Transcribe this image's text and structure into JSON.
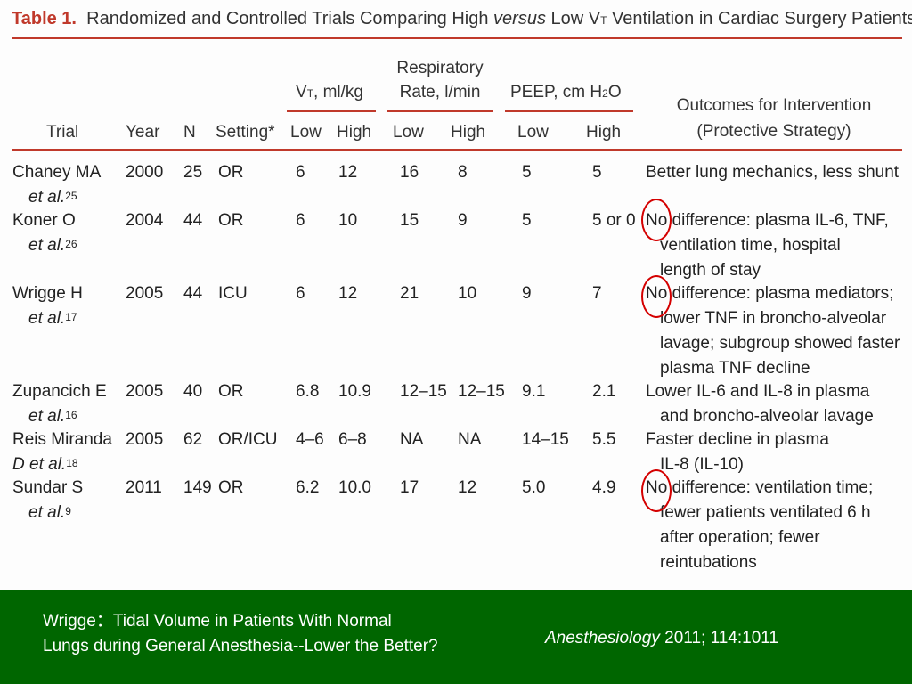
{
  "table": {
    "label": "Table 1.",
    "title_a": "Randomized and Controlled Trials Comparing High ",
    "title_versus": "versus",
    "title_b": " Low V",
    "title_sub": "T",
    "title_c": " Ventilation in Cardiac Surgery Patients",
    "groups": {
      "vt": "ml/kg",
      "vt_prefix": "V",
      "vt_sub": "T",
      "rr_line1": "Respiratory",
      "rr_line2": "Rate, l/min",
      "peep_a": "PEEP, cm H",
      "peep_sub": "2",
      "peep_b": "O"
    },
    "columns": {
      "trial": "Trial",
      "year": "Year",
      "n": "N",
      "setting": "Setting*",
      "low": "Low",
      "high": "High",
      "outcomes_line1": "Outcomes for Intervention",
      "outcomes_line2": "(Protective Strategy)"
    },
    "rows": [
      {
        "trial1": "Chaney MA",
        "trial2": "et al.",
        "ref": "25",
        "year": "2000",
        "n": "25",
        "setting": "OR",
        "vt_low": "6",
        "vt_high": "12",
        "rr_low": "16",
        "rr_high": "8",
        "peep_low": "5",
        "peep_high": "5",
        "outcome": [
          "Better lung mechanics, less shunt"
        ]
      },
      {
        "trial1": "Koner O",
        "trial2": "et al.",
        "ref": "26",
        "year": "2004",
        "n": "44",
        "setting": "OR",
        "vt_low": "6",
        "vt_high": "10",
        "rr_low": "15",
        "rr_high": "9",
        "peep_low": "5",
        "peep_high": "5 or 0",
        "outcome": [
          "No difference: plasma IL-6, TNF,",
          "ventilation time, hospital",
          "length of stay"
        ]
      },
      {
        "trial1": "Wrigge H",
        "trial2": "et al.",
        "ref": "17",
        "year": "2005",
        "n": "44",
        "setting": "ICU",
        "vt_low": "6",
        "vt_high": "12",
        "rr_low": "21",
        "rr_high": "10",
        "peep_low": "9",
        "peep_high": "7",
        "outcome": [
          "No difference: plasma mediators;",
          "lower TNF in broncho-alveolar",
          "lavage; subgroup showed faster",
          "plasma TNF decline"
        ]
      },
      {
        "trial1": "Zupancich E",
        "trial2": "et al.",
        "ref": "16",
        "year": "2005",
        "n": "40",
        "setting": "OR",
        "vt_low": "6.8",
        "vt_high": "10.9",
        "rr_low": "12–15",
        "rr_high": "12–15",
        "peep_low": "9.1",
        "peep_high": "2.1",
        "outcome": [
          "Lower IL-6 and IL-8 in plasma",
          "and broncho-alveolar lavage"
        ]
      },
      {
        "trial1": "Reis Miranda",
        "trial2": "D et al.",
        "ref": "18",
        "year": "2005",
        "n": "62",
        "setting": "OR/ICU",
        "vt_low": "4–6",
        "vt_high": "6–8",
        "rr_low": "NA",
        "rr_high": "NA",
        "peep_low": "14–15",
        "peep_high": "5.5",
        "outcome": [
          "Faster decline in plasma",
          "IL-8 (IL-10)"
        ]
      },
      {
        "trial1": "Sundar S",
        "trial2": "et al.",
        "ref": "9",
        "year": "2011",
        "n": "149",
        "setting": "OR",
        "vt_low": "6.2",
        "vt_high": "10.0",
        "rr_low": "17",
        "rr_high": "12",
        "peep_low": "5.0",
        "peep_high": "4.9",
        "outcome": [
          "No difference: ventilation time;",
          "fewer patients ventilated 6 h",
          "after operation; fewer",
          "reintubations"
        ]
      }
    ]
  },
  "footer": {
    "line1": "Wrigge：Tidal Volume in Patients With Normal",
    "line2": "Lungs during General Anesthesia--Lower the Better?",
    "citation_journal": "Anesthesiology",
    "citation_rest": " 2011; 114:1011"
  },
  "colors": {
    "accent": "#c0392b",
    "footer_bg": "#006600",
    "circle": "#d40000"
  }
}
